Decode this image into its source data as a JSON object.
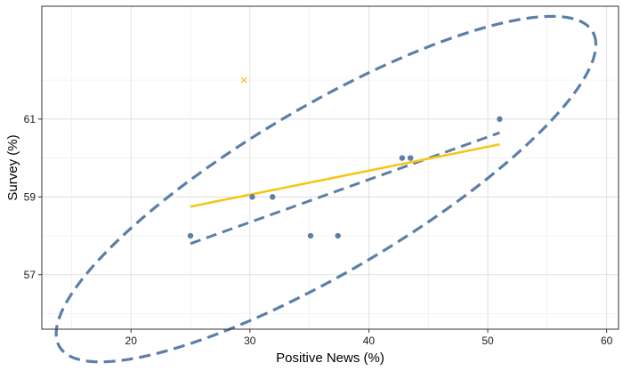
{
  "chart_data": {
    "type": "scatter",
    "xlabel": "Positive News (%)",
    "ylabel": "Survey (%)",
    "xlim": [
      12.5,
      61
    ],
    "ylim": [
      55.6,
      63.9
    ],
    "x_ticks": [
      20,
      30,
      40,
      50,
      60
    ],
    "y_ticks": [
      57,
      59,
      61
    ],
    "grid": true,
    "series": [
      {
        "marker": "dot",
        "color": "#5b7fa8",
        "points": [
          {
            "x": 25,
            "y": 58
          },
          {
            "x": 30.2,
            "y": 59
          },
          {
            "x": 31.9,
            "y": 59
          },
          {
            "x": 35.1,
            "y": 58
          },
          {
            "x": 37.4,
            "y": 58
          },
          {
            "x": 42.8,
            "y": 60
          },
          {
            "x": 43.5,
            "y": 60
          },
          {
            "x": 51.0,
            "y": 61
          }
        ]
      },
      {
        "marker": "cross",
        "color": "#f5c518",
        "points": [
          {
            "x": 29.5,
            "y": 62
          }
        ]
      }
    ],
    "fit_lines": [
      {
        "style": "dashed",
        "color": "#5b7fa8",
        "x": [
          25,
          51
        ],
        "y": [
          57.8,
          60.65
        ]
      },
      {
        "style": "solid",
        "color": "#f5c518",
        "x": [
          25,
          51
        ],
        "y": [
          58.75,
          60.35
        ]
      }
    ],
    "ellipse": {
      "style": "dashed",
      "color": "#5b7fa8",
      "center": [
        36.4,
        59.2
      ],
      "semi_axis_major": 23.0,
      "semi_axis_minor": 2.4,
      "angle_deg": 9.4
    }
  }
}
